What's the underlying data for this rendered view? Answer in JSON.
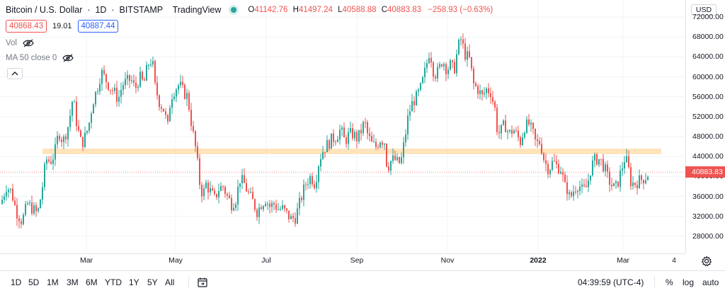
{
  "legend": {
    "symbol": "Bitcoin / U.S. Dollar",
    "interval": "1D",
    "exchange": "BITSTAMP",
    "source": "TradingView",
    "o_label": "O",
    "o": "41142.76",
    "h_label": "H",
    "h": "41497.24",
    "l_label": "L",
    "l": "40588.88",
    "c_label": "C",
    "c": "40883.83",
    "change": "−258.93 (−0.63%)"
  },
  "quote": {
    "sell": "40868.43",
    "spread": "19.01",
    "buy": "40887.44"
  },
  "indicators": {
    "vol": "Vol",
    "ma": "MA 50 close 0"
  },
  "price_scale": {
    "currency": "USD",
    "ticks": [
      "72000.00",
      "68000.00",
      "64000.00",
      "60000.00",
      "56000.00",
      "52000.00",
      "48000.00",
      "44000.00",
      "40000.00",
      "36000.00",
      "32000.00",
      "28000.00"
    ],
    "last_price": "40883.83"
  },
  "time_scale": {
    "labels": [
      "Mar",
      "May",
      "Jul",
      "Sep",
      "Nov",
      "2022",
      "Mar",
      "4"
    ]
  },
  "bottom_bar": {
    "ranges": [
      "1D",
      "5D",
      "1M",
      "3M",
      "6M",
      "YTD",
      "1Y",
      "5Y",
      "All"
    ],
    "clock": "04:39:59 (UTC-4)",
    "percent": "%",
    "log": "log",
    "auto": "auto"
  },
  "chart_data": {
    "type": "candlestick",
    "title": "Bitcoin / U.S. Dollar · 1D · BITSTAMP",
    "ylim": [
      26000,
      74000
    ],
    "support_zone": [
      44500,
      45600
    ],
    "close_path": [
      [
        0,
        34500
      ],
      [
        8,
        38000
      ],
      [
        15,
        37000
      ],
      [
        22,
        33000
      ],
      [
        30,
        31000
      ],
      [
        38,
        34500
      ],
      [
        45,
        33500
      ],
      [
        52,
        32500
      ],
      [
        58,
        37000
      ],
      [
        64,
        43500
      ],
      [
        70,
        43000
      ],
      [
        76,
        44500
      ],
      [
        82,
        49000
      ],
      [
        88,
        47000
      ],
      [
        96,
        50500
      ],
      [
        102,
        56000
      ],
      [
        108,
        50000
      ],
      [
        114,
        46500
      ],
      [
        118,
        47500
      ],
      [
        124,
        50000
      ],
      [
        130,
        55000
      ],
      [
        136,
        57500
      ],
      [
        142,
        61000
      ],
      [
        148,
        59500
      ],
      [
        154,
        58000
      ],
      [
        160,
        57000
      ],
      [
        166,
        55500
      ],
      [
        172,
        58500
      ],
      [
        178,
        59000
      ],
      [
        184,
        59500
      ],
      [
        190,
        57500
      ],
      [
        196,
        60000
      ],
      [
        202,
        58500
      ],
      [
        208,
        62500
      ],
      [
        214,
        63500
      ],
      [
        218,
        58000
      ],
      [
        224,
        55000
      ],
      [
        230,
        53500
      ],
      [
        236,
        50000
      ],
      [
        240,
        56000
      ],
      [
        246,
        57500
      ],
      [
        252,
        58500
      ],
      [
        258,
        57000
      ],
      [
        264,
        56000
      ],
      [
        270,
        50000
      ],
      [
        276,
        45000
      ],
      [
        282,
        37500
      ],
      [
        286,
        36500
      ],
      [
        290,
        38500
      ],
      [
        296,
        37000
      ],
      [
        302,
        35500
      ],
      [
        308,
        37500
      ],
      [
        314,
        38000
      ],
      [
        320,
        36000
      ],
      [
        326,
        34500
      ],
      [
        332,
        35500
      ],
      [
        338,
        39500
      ],
      [
        344,
        38500
      ],
      [
        350,
        36500
      ],
      [
        356,
        35000
      ],
      [
        362,
        33000
      ],
      [
        368,
        34500
      ],
      [
        374,
        35500
      ],
      [
        380,
        34000
      ],
      [
        386,
        34500
      ],
      [
        392,
        33500
      ],
      [
        398,
        33500
      ],
      [
        404,
        32500
      ],
      [
        410,
        31500
      ],
      [
        416,
        31800
      ],
      [
        420,
        33500
      ],
      [
        426,
        36500
      ],
      [
        432,
        39000
      ],
      [
        438,
        40000
      ],
      [
        444,
        38500
      ],
      [
        450,
        43500
      ],
      [
        456,
        45500
      ],
      [
        462,
        46500
      ],
      [
        468,
        47500
      ],
      [
        474,
        48000
      ],
      [
        480,
        49500
      ],
      [
        486,
        47000
      ],
      [
        492,
        48500
      ],
      [
        498,
        48500
      ],
      [
        504,
        47500
      ],
      [
        510,
        49500
      ],
      [
        514,
        51000
      ],
      [
        518,
        48500
      ],
      [
        524,
        46500
      ],
      [
        530,
        46000
      ],
      [
        536,
        47500
      ],
      [
        542,
        47000
      ],
      [
        546,
        41500
      ],
      [
        550,
        43000
      ],
      [
        556,
        43500
      ],
      [
        562,
        42500
      ],
      [
        566,
        43500
      ],
      [
        570,
        47000
      ],
      [
        576,
        52500
      ],
      [
        582,
        55000
      ],
      [
        588,
        56000
      ],
      [
        594,
        58000
      ],
      [
        600,
        61500
      ],
      [
        606,
        65500
      ],
      [
        612,
        60500
      ],
      [
        618,
        61000
      ],
      [
        624,
        63500
      ],
      [
        630,
        61500
      ],
      [
        636,
        62500
      ],
      [
        640,
        61000
      ],
      [
        646,
        66000
      ],
      [
        650,
        67500
      ],
      [
        656,
        64500
      ],
      [
        662,
        63500
      ],
      [
        668,
        58500
      ],
      [
        674,
        57500
      ],
      [
        680,
        56000
      ],
      [
        686,
        57500
      ],
      [
        692,
        57000
      ],
      [
        698,
        53500
      ],
      [
        702,
        48500
      ],
      [
        706,
        49000
      ],
      [
        712,
        50500
      ],
      [
        718,
        48500
      ],
      [
        724,
        49500
      ],
      [
        728,
        48500
      ],
      [
        734,
        47000
      ],
      [
        740,
        50000
      ],
      [
        746,
        50500
      ],
      [
        752,
        48500
      ],
      [
        756,
        46500
      ],
      [
        762,
        47000
      ],
      [
        768,
        43000
      ],
      [
        774,
        41500
      ],
      [
        780,
        43000
      ],
      [
        786,
        42000
      ],
      [
        792,
        41500
      ],
      [
        796,
        38000
      ],
      [
        800,
        37500
      ],
      [
        804,
        35500
      ],
      [
        810,
        37500
      ],
      [
        816,
        38500
      ],
      [
        822,
        37000
      ],
      [
        828,
        38000
      ],
      [
        834,
        42000
      ],
      [
        840,
        43500
      ],
      [
        846,
        43500
      ],
      [
        852,
        42000
      ],
      [
        858,
        39500
      ],
      [
        864,
        38000
      ],
      [
        868,
        37500
      ],
      [
        872,
        39000
      ],
      [
        878,
        42000
      ],
      [
        882,
        44000
      ],
      [
        886,
        42000
      ],
      [
        890,
        39000
      ],
      [
        894,
        38500
      ],
      [
        900,
        39000
      ],
      [
        906,
        39500
      ],
      [
        912,
        40000
      ],
      [
        916,
        40883
      ]
    ]
  }
}
